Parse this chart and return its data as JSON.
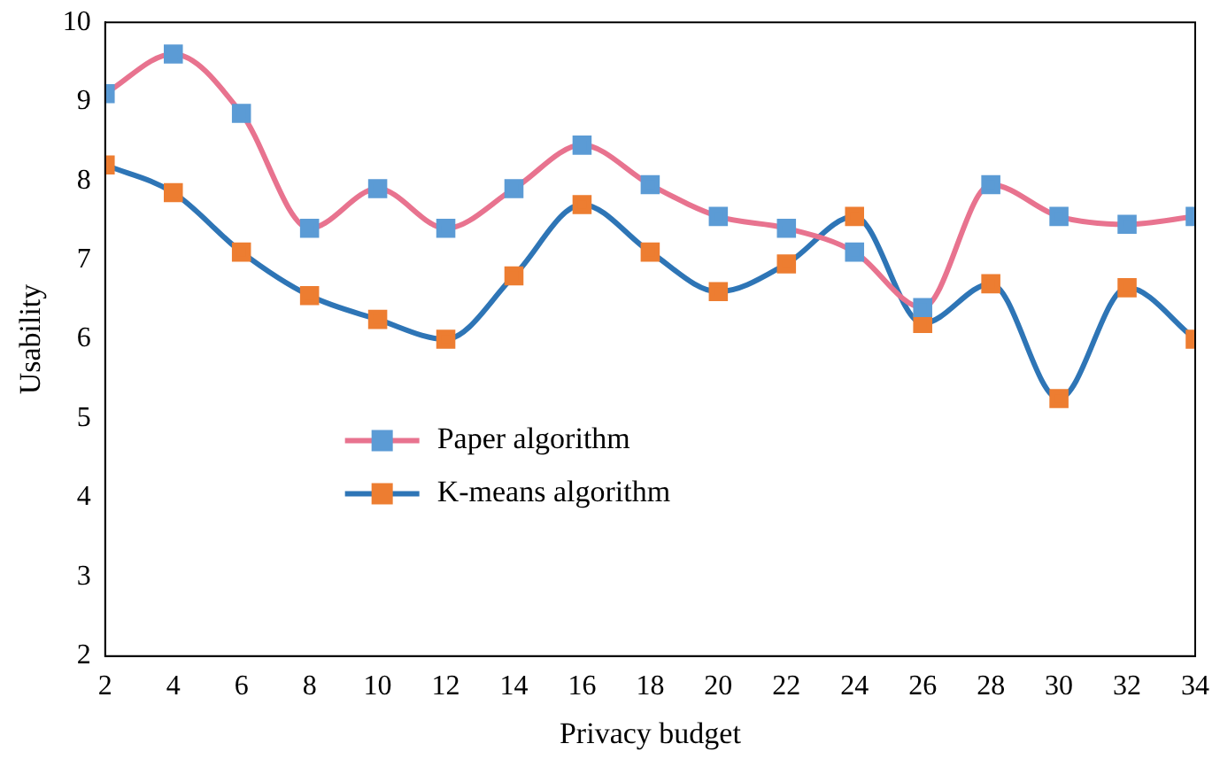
{
  "chart_data": {
    "type": "line",
    "xlabel": "Privacy budget",
    "ylabel": "Usability",
    "x": [
      2,
      4,
      6,
      8,
      10,
      12,
      14,
      16,
      18,
      20,
      22,
      24,
      26,
      28,
      30,
      32,
      34
    ],
    "xlim": [
      2,
      34
    ],
    "xticks": [
      2,
      4,
      6,
      8,
      10,
      12,
      14,
      16,
      18,
      20,
      22,
      24,
      26,
      28,
      30,
      32,
      34
    ],
    "ylim": [
      2,
      10
    ],
    "yticks": [
      2,
      3,
      4,
      5,
      6,
      7,
      8,
      9,
      10
    ],
    "grid": false,
    "legend": "center",
    "marker": "square",
    "line_style": "solid",
    "series": [
      {
        "name": "Paper algorithm",
        "color": "#e8738f",
        "colors": [
          "#5b9bd5",
          "#5b9bd5",
          "#5b9bd5",
          "#5b9bd5",
          "#5b9bd5",
          "#5b9bd5",
          "#5b9bd5",
          "#5b9bd5",
          "#5b9bd5",
          "#5b9bd5",
          "#5b9bd5",
          "#5b9bd5",
          "#5b9bd5",
          "#5b9bd5",
          "#5b9bd5",
          "#5b9bd5",
          "#5b9bd5"
        ],
        "values": [
          9.1,
          9.6,
          8.85,
          7.4,
          7.9,
          7.4,
          7.9,
          8.45,
          7.95,
          7.55,
          7.4,
          7.1,
          6.4,
          7.95,
          7.55,
          7.45,
          7.55
        ]
      },
      {
        "name": "K-means algorithm",
        "color": "#2e75b6",
        "colors": [
          "#ed7d31",
          "#ed7d31",
          "#ed7d31",
          "#ed7d31",
          "#ed7d31",
          "#ed7d31",
          "#ed7d31",
          "#ed7d31",
          "#ed7d31",
          "#ed7d31",
          "#ed7d31",
          "#ed7d31",
          "#ed7d31",
          "#ed7d31",
          "#ed7d31",
          "#ed7d31",
          "#ed7d31"
        ],
        "values": [
          8.2,
          7.85,
          7.1,
          6.55,
          6.25,
          6.0,
          6.8,
          7.7,
          7.1,
          6.6,
          6.95,
          7.55,
          6.2,
          6.7,
          5.25,
          6.65,
          6.0
        ]
      }
    ]
  }
}
